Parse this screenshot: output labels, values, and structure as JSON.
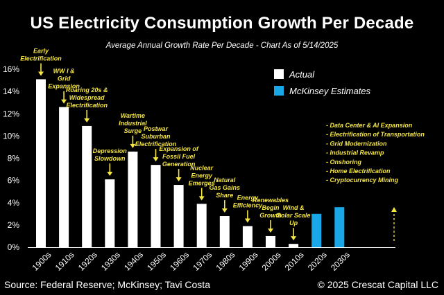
{
  "title": "US Electricity Consumption Growth Per Decade",
  "subtitle": "Average Annual Growth Rate Per Decade - Chart As of 5/14/2025",
  "footer": {
    "source": "Source: Federal Reserve; McKinsey; Tavi Costa",
    "copyright": "© 2025 Crescat Capital LLC"
  },
  "colors": {
    "actual": "#ffffff",
    "estimate": "#1aa7e8",
    "annotation": "#f5e642"
  },
  "chart_data": {
    "type": "bar",
    "title": "US Electricity Consumption Growth Per Decade",
    "subtitle": "Average Annual Growth Rate Per Decade - Chart As of 5/14/2025",
    "categories": [
      "1900s",
      "1910s",
      "1920s",
      "1930s",
      "1940s",
      "1950s",
      "1960s",
      "1970s",
      "1980s",
      "1990s",
      "2000s",
      "2010s",
      "2020s",
      "2030s"
    ],
    "series": [
      {
        "name": "Actual",
        "values": [
          15.1,
          12.6,
          10.9,
          6.1,
          8.6,
          7.4,
          5.6,
          3.9,
          2.8,
          1.9,
          1.0,
          0.3,
          null,
          null
        ]
      },
      {
        "name": "McKinsey Estimates",
        "values": [
          null,
          null,
          null,
          null,
          null,
          null,
          null,
          null,
          null,
          null,
          null,
          null,
          3.0,
          3.6
        ]
      }
    ],
    "ylim": [
      0,
      16
    ],
    "yticks": [
      "0%",
      "2%",
      "4%",
      "6%",
      "8%",
      "10%",
      "12%",
      "14%",
      "16%"
    ],
    "grid": false,
    "legend_position": "top-right",
    "annotations": [
      {
        "category": "1900s",
        "lines": [
          "Early",
          "Electrification"
        ]
      },
      {
        "category": "1910s",
        "lines": [
          "WW I &",
          "Grid",
          "Expansion"
        ]
      },
      {
        "category": "1920s",
        "lines": [
          "Roaring 20s &",
          "Widespread",
          "Electrification"
        ]
      },
      {
        "category": "1930s",
        "lines": [
          "Depression",
          "Slowdown"
        ]
      },
      {
        "category": "1940s",
        "lines": [
          "Wartime",
          "Industrial",
          "Surge"
        ]
      },
      {
        "category": "1950s",
        "lines": [
          "Postwar",
          "Suburban",
          "Electrification"
        ]
      },
      {
        "category": "1960s",
        "lines": [
          "Expansion of",
          "Fossil Fuel",
          "Generation"
        ]
      },
      {
        "category": "1970s",
        "lines": [
          "Nuclear",
          "Energy",
          "Emerges"
        ]
      },
      {
        "category": "1980s",
        "lines": [
          "Natural",
          "Gas Gains",
          "Share"
        ]
      },
      {
        "category": "1990s",
        "lines": [
          "Energy",
          "Efficiency"
        ]
      },
      {
        "category": "2000s",
        "lines": [
          "Renewables",
          "Begin",
          "Growth"
        ]
      },
      {
        "category": "2010s",
        "lines": [
          "Wind &",
          "Solar Scale",
          "Up"
        ]
      }
    ],
    "estimate_drivers": [
      "- Data Center & AI Expansion",
      "- Electrification of Transportation",
      "- Grid Modernization",
      "- Industrial Revamp",
      "- Onshoring",
      "- Home Electrification",
      "- Cryptocurrency Mining"
    ]
  }
}
